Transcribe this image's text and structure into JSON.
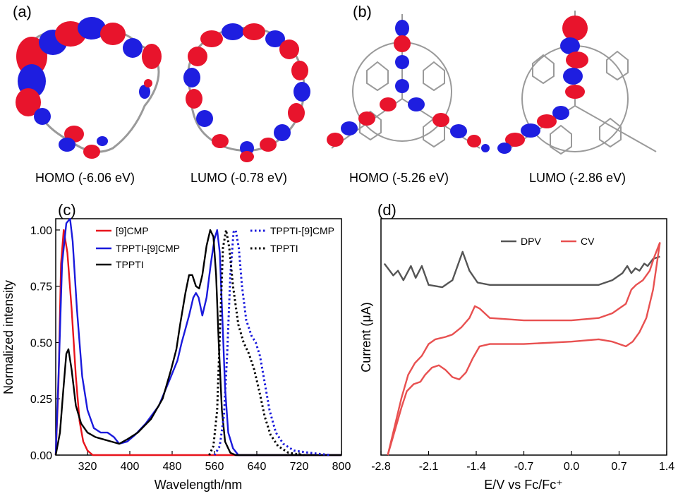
{
  "panels": {
    "a": {
      "label": "(a)",
      "homo_caption": "HOMO (-6.06 eV)",
      "lumo_caption": "LUMO (-0.78 eV)"
    },
    "b": {
      "label": "(b)",
      "homo_caption": "HOMO (-5.26 eV)",
      "lumo_caption": "LUMO (-2.86 eV)"
    },
    "c": {
      "label": "(c)"
    },
    "d": {
      "label": "(d)"
    }
  },
  "colors": {
    "lobe_positive": "#e8142c",
    "lobe_negative": "#1e1ee0",
    "bond": "#9a9a9a"
  },
  "chart_data": [
    {
      "type": "line",
      "panel": "c",
      "xlabel": "Wavelength/nm",
      "ylabel": "Normalized intensity",
      "xlim": [
        260,
        800
      ],
      "ylim": [
        0,
        1.05
      ],
      "xticks": [
        "320",
        "400",
        "480",
        "560",
        "640",
        "720",
        "800"
      ],
      "xtick_values": [
        320,
        400,
        480,
        560,
        640,
        720,
        800
      ],
      "yticks": [
        "0.00",
        "0.25",
        "0.50",
        "0.75",
        "1.00"
      ],
      "ytick_values": [
        0,
        0.25,
        0.5,
        0.75,
        1.0
      ],
      "legend": [
        {
          "name": "[9]CMP",
          "style": "solid",
          "color": "#e8141c"
        },
        {
          "name": "TPPTI-[9]CMP",
          "style": "solid",
          "color": "#1a1adc"
        },
        {
          "name": "TPPTI",
          "style": "solid",
          "color": "#000000"
        },
        {
          "name": "TPPTI-[9]CMP",
          "style": "dotted",
          "color": "#1a1adc"
        },
        {
          "name": "TPPTI",
          "style": "dotted",
          "color": "#000000"
        }
      ],
      "series": [
        {
          "name": "[9]CMP",
          "style": "solid",
          "color": "#e8141c",
          "points": [
            [
              260,
              0.0
            ],
            [
              265,
              0.3
            ],
            [
              270,
              0.85
            ],
            [
              275,
              1.0
            ],
            [
              282,
              0.9
            ],
            [
              290,
              0.65
            ],
            [
              298,
              0.35
            ],
            [
              305,
              0.15
            ],
            [
              312,
              0.06
            ],
            [
              320,
              0.02
            ],
            [
              330,
              0.0
            ],
            [
              800,
              0.0
            ]
          ]
        },
        {
          "name": "TPPTI-[9]CMP",
          "style": "solid",
          "color": "#1a1adc",
          "points": [
            [
              260,
              0.0
            ],
            [
              266,
              0.4
            ],
            [
              272,
              0.85
            ],
            [
              280,
              1.03
            ],
            [
              287,
              1.05
            ],
            [
              292,
              0.95
            ],
            [
              300,
              0.65
            ],
            [
              310,
              0.35
            ],
            [
              320,
              0.2
            ],
            [
              332,
              0.12
            ],
            [
              345,
              0.1
            ],
            [
              358,
              0.1
            ],
            [
              370,
              0.08
            ],
            [
              380,
              0.05
            ],
            [
              395,
              0.06
            ],
            [
              410,
              0.09
            ],
            [
              430,
              0.14
            ],
            [
              455,
              0.22
            ],
            [
              478,
              0.35
            ],
            [
              490,
              0.42
            ],
            [
              498,
              0.5
            ],
            [
              505,
              0.56
            ],
            [
              512,
              0.62
            ],
            [
              520,
              0.7
            ],
            [
              525,
              0.72
            ],
            [
              530,
              0.7
            ],
            [
              537,
              0.62
            ],
            [
              545,
              0.7
            ],
            [
              553,
              0.85
            ],
            [
              560,
              0.96
            ],
            [
              565,
              1.0
            ],
            [
              570,
              0.9
            ],
            [
              575,
              0.6
            ],
            [
              580,
              0.3
            ],
            [
              586,
              0.1
            ],
            [
              595,
              0.03
            ],
            [
              605,
              0.0
            ],
            [
              800,
              0.0
            ]
          ]
        },
        {
          "name": "TPPTI",
          "style": "solid",
          "color": "#000000",
          "points": [
            [
              260,
              0.0
            ],
            [
              268,
              0.1
            ],
            [
              274,
              0.28
            ],
            [
              280,
              0.45
            ],
            [
              284,
              0.47
            ],
            [
              290,
              0.38
            ],
            [
              298,
              0.22
            ],
            [
              308,
              0.14
            ],
            [
              320,
              0.1
            ],
            [
              335,
              0.08
            ],
            [
              350,
              0.07
            ],
            [
              365,
              0.06
            ],
            [
              380,
              0.05
            ],
            [
              395,
              0.07
            ],
            [
              415,
              0.1
            ],
            [
              440,
              0.16
            ],
            [
              462,
              0.25
            ],
            [
              478,
              0.38
            ],
            [
              488,
              0.47
            ],
            [
              495,
              0.58
            ],
            [
              505,
              0.72
            ],
            [
              512,
              0.8
            ],
            [
              518,
              0.8
            ],
            [
              525,
              0.75
            ],
            [
              531,
              0.74
            ],
            [
              537,
              0.8
            ],
            [
              545,
              0.93
            ],
            [
              552,
              1.0
            ],
            [
              558,
              0.97
            ],
            [
              563,
              0.8
            ],
            [
              568,
              0.5
            ],
            [
              574,
              0.2
            ],
            [
              580,
              0.06
            ],
            [
              590,
              0.01
            ],
            [
              600,
              0.0
            ],
            [
              800,
              0.0
            ]
          ]
        },
        {
          "name": "TPPTI-[9]CMP",
          "style": "dotted",
          "color": "#1a1adc",
          "points": [
            [
              560,
              0.0
            ],
            [
              570,
              0.04
            ],
            [
              578,
              0.18
            ],
            [
              584,
              0.45
            ],
            [
              590,
              0.8
            ],
            [
              596,
              0.99
            ],
            [
              600,
              1.0
            ],
            [
              606,
              0.92
            ],
            [
              612,
              0.75
            ],
            [
              620,
              0.6
            ],
            [
              630,
              0.53
            ],
            [
              638,
              0.5
            ],
            [
              646,
              0.44
            ],
            [
              655,
              0.32
            ],
            [
              664,
              0.2
            ],
            [
              676,
              0.1
            ],
            [
              690,
              0.05
            ],
            [
              710,
              0.02
            ],
            [
              740,
              0.01
            ],
            [
              780,
              0.0
            ]
          ]
        },
        {
          "name": "TPPTI",
          "style": "dotted",
          "color": "#000000",
          "points": [
            [
              550,
              0.0
            ],
            [
              558,
              0.04
            ],
            [
              565,
              0.2
            ],
            [
              571,
              0.6
            ],
            [
              576,
              0.92
            ],
            [
              582,
              1.0
            ],
            [
              588,
              0.92
            ],
            [
              595,
              0.75
            ],
            [
              605,
              0.58
            ],
            [
              615,
              0.5
            ],
            [
              625,
              0.45
            ],
            [
              635,
              0.38
            ],
            [
              645,
              0.28
            ],
            [
              655,
              0.17
            ],
            [
              666,
              0.09
            ],
            [
              680,
              0.04
            ],
            [
              700,
              0.01
            ],
            [
              730,
              0.0
            ]
          ]
        }
      ]
    },
    {
      "type": "line",
      "panel": "d",
      "xlabel": "E/V vs Fc/Fc⁺",
      "ylabel": "Current (μA)",
      "xlim": [
        -2.8,
        1.4
      ],
      "xticks": [
        "-2.8",
        "-2.1",
        "-1.4",
        "-0.7",
        "0.0",
        "0.7",
        "1.4"
      ],
      "xtick_values": [
        -2.8,
        -2.1,
        -1.4,
        -0.7,
        0.0,
        0.7,
        1.4
      ],
      "y_units": "arbitrary (no tick labels)",
      "ylim": [
        0,
        100
      ],
      "legend": [
        {
          "name": "DPV",
          "color": "#555555"
        },
        {
          "name": "CV",
          "color": "#e85050"
        }
      ],
      "series": [
        {
          "name": "DPV",
          "color": "#555555",
          "points": [
            [
              -2.75,
              81
            ],
            [
              -2.62,
              76
            ],
            [
              -2.55,
              78
            ],
            [
              -2.47,
              74
            ],
            [
              -2.36,
              80
            ],
            [
              -2.29,
              75
            ],
            [
              -2.2,
              80
            ],
            [
              -2.1,
              72
            ],
            [
              -1.9,
              71
            ],
            [
              -1.75,
              74
            ],
            [
              -1.6,
              86
            ],
            [
              -1.5,
              78
            ],
            [
              -1.38,
              73
            ],
            [
              -1.2,
              72
            ],
            [
              -0.7,
              72
            ],
            [
              0.0,
              72
            ],
            [
              0.4,
              72
            ],
            [
              0.6,
              74
            ],
            [
              0.75,
              77
            ],
            [
              0.82,
              80
            ],
            [
              0.88,
              77
            ],
            [
              0.94,
              79
            ],
            [
              1.0,
              78
            ],
            [
              1.07,
              81
            ],
            [
              1.12,
              80
            ],
            [
              1.2,
              83
            ],
            [
              1.3,
              84
            ]
          ]
        },
        {
          "name": "CV_upper",
          "color": "#e85050",
          "points": [
            [
              -2.7,
              0
            ],
            [
              -2.6,
              12
            ],
            [
              -2.5,
              24
            ],
            [
              -2.4,
              34
            ],
            [
              -2.3,
              39
            ],
            [
              -2.2,
              42
            ],
            [
              -2.1,
              47
            ],
            [
              -2.0,
              49
            ],
            [
              -1.85,
              50
            ],
            [
              -1.75,
              51
            ],
            [
              -1.62,
              54
            ],
            [
              -1.5,
              58
            ],
            [
              -1.42,
              63
            ],
            [
              -1.35,
              62
            ],
            [
              -1.2,
              58
            ],
            [
              -0.7,
              57
            ],
            [
              0.0,
              57
            ],
            [
              0.4,
              58
            ],
            [
              0.6,
              60
            ],
            [
              0.8,
              64
            ],
            [
              0.88,
              70
            ],
            [
              0.95,
              72
            ],
            [
              1.05,
              74
            ],
            [
              1.15,
              78
            ],
            [
              1.22,
              84
            ],
            [
              1.3,
              90
            ]
          ]
        },
        {
          "name": "CV_lower",
          "color": "#e85050",
          "points": [
            [
              -2.7,
              0
            ],
            [
              -2.6,
              10
            ],
            [
              -2.5,
              20
            ],
            [
              -2.42,
              27
            ],
            [
              -2.32,
              30
            ],
            [
              -2.22,
              31
            ],
            [
              -2.15,
              34
            ],
            [
              -2.05,
              37
            ],
            [
              -1.95,
              38
            ],
            [
              -1.85,
              36
            ],
            [
              -1.75,
              33
            ],
            [
              -1.65,
              32
            ],
            [
              -1.55,
              35
            ],
            [
              -1.45,
              41
            ],
            [
              -1.35,
              46
            ],
            [
              -1.2,
              47
            ],
            [
              -0.7,
              47
            ],
            [
              0.0,
              48
            ],
            [
              0.4,
              49
            ],
            [
              0.6,
              48
            ],
            [
              0.8,
              46
            ],
            [
              0.9,
              48
            ],
            [
              1.0,
              52
            ],
            [
              1.1,
              58
            ],
            [
              1.2,
              70
            ],
            [
              1.3,
              90
            ]
          ]
        }
      ]
    }
  ]
}
